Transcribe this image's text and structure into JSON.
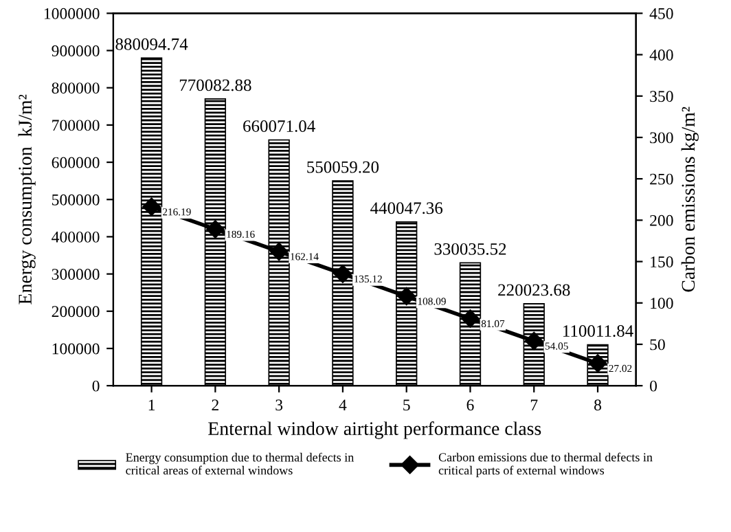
{
  "chart_data": {
    "type": "bar",
    "xlabel": "Enternal window airtight performance class",
    "ylabel": "Energy consumption  kJ/m²",
    "y2label": "Carbon emissions kg/m²",
    "categories": [
      "1",
      "2",
      "3",
      "4",
      "5",
      "6",
      "7",
      "8"
    ],
    "series": [
      {
        "name": "Energy consumption due to thermal defects in critical areas of external windows",
        "color": "#000000",
        "values": [
          880094.74,
          770082.88,
          660071.04,
          550059.2,
          440047.36,
          330035.52,
          220023.68,
          110011.84
        ],
        "value_labels": [
          "880094.74",
          "770082.88",
          "660071.04",
          "550059.20",
          "440047.36",
          "330035.52",
          "220023.68",
          "110011.84"
        ]
      },
      {
        "type": "line",
        "axis": "y2",
        "name": "Carbon emissions due to thermal defects in critical parts of external windows",
        "color": "#000000",
        "marker": "diamond",
        "values": [
          216.19,
          189.16,
          162.14,
          135.12,
          108.09,
          81.07,
          54.05,
          27.02
        ],
        "value_labels": [
          "216.19",
          "189.16",
          "162.14",
          "135.12",
          "108.09",
          "81.07",
          "54.05",
          "27.02"
        ]
      }
    ],
    "ylim": [
      0,
      1000000
    ],
    "yticks": [
      0,
      100000,
      200000,
      300000,
      400000,
      500000,
      600000,
      700000,
      800000,
      900000,
      1000000
    ],
    "y2lim": [
      0,
      450
    ],
    "y2ticks": [
      0,
      50,
      100,
      150,
      200,
      250,
      300,
      350,
      400,
      450
    ],
    "grid": false,
    "legend": "bottom"
  }
}
